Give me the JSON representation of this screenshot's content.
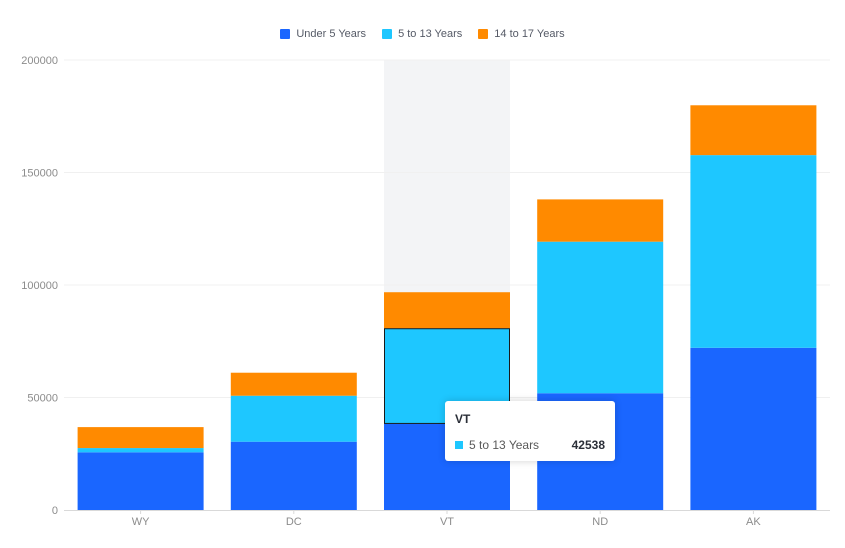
{
  "chart_data": {
    "type": "bar",
    "stacked": true,
    "categories": [
      "WY",
      "DC",
      "VT",
      "ND",
      "AK"
    ],
    "series": [
      {
        "name": "Under 5 Years",
        "color": "#1a66ff",
        "values": [
          25635,
          30352,
          38253,
          51896,
          72083
        ]
      },
      {
        "name": "5 to 13 Years",
        "color": "#1ec7ff",
        "values": [
          1890,
          20439,
          42538,
          67358,
          85640
        ]
      },
      {
        "name": "14 to 17 Years",
        "color": "#ff8a00",
        "values": [
          9314,
          10225,
          15999,
          18794,
          22153
        ]
      }
    ],
    "y_ticks": [
      "0",
      "50000",
      "100000",
      "150000",
      "200000"
    ],
    "ylim": [
      0,
      200000
    ],
    "grid": true,
    "legend_position": "top-center",
    "highlighted_category": "VT",
    "highlighted_series": "5 to 13 Years"
  },
  "tooltip": {
    "title": "VT",
    "series_name": "5 to 13 Years",
    "value": "42538",
    "color": "#1ec7ff"
  },
  "colors": {
    "axis": "#d9d9d9",
    "grid": "#f0f0f0",
    "tick_text": "#8c8c8c",
    "hover_band": "#f3f4f6",
    "highlight_border": "#1a1a1a"
  }
}
